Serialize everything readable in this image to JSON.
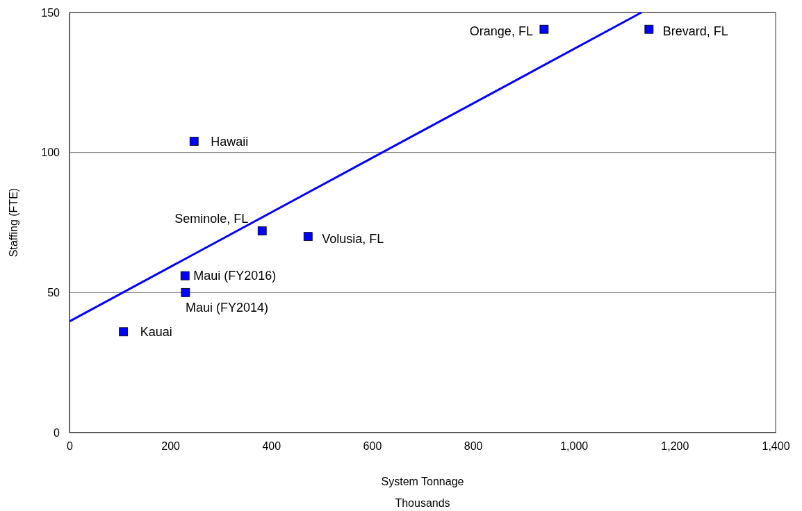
{
  "chart_data": {
    "type": "scatter",
    "xlabel": "System Tonnage",
    "ylabel": "Staffing (FTE)",
    "annotations": [
      "Thousands",
      {
        "text": "Kauai",
        "x": 107,
        "y": 36
      },
      {
        "text": "Maui (FY2014)",
        "x": 230,
        "y": 50
      },
      {
        "text": "Maui (FY2016)",
        "x": 229,
        "y": 56
      },
      {
        "text": "Hawaii",
        "x": 247,
        "y": 104
      },
      {
        "text": "Seminole, FL",
        "x": 382,
        "y": 72
      },
      {
        "text": "Volusia, FL",
        "x": 473,
        "y": 70
      },
      {
        "text": "Orange, FL",
        "x": 941,
        "y": 144
      },
      {
        "text": "Brevard, FL",
        "x": 1149,
        "y": 144
      }
    ],
    "series": [
      {
        "type": "line",
        "color": "#0000ff",
        "x": [
          0,
          1134
        ],
        "values": [
          39.7,
          150
        ],
        "marker": "none"
      },
      {
        "color": "#0000ff",
        "marker": "square",
        "x": [
          107,
          230,
          229,
          247,
          382,
          473,
          941,
          1149
        ],
        "values": [
          36,
          50,
          56,
          104,
          72,
          70,
          144,
          144
        ]
      }
    ],
    "xlim": [
      0,
      1400
    ],
    "ylim": [
      0,
      150
    ],
    "xticks": [
      0,
      200,
      400,
      600,
      800,
      {
        "value": 1000,
        "label": "1,000"
      },
      {
        "value": 1200,
        "label": "1,200"
      },
      {
        "value": 1400,
        "label": "1,400"
      }
    ],
    "yticks": [
      0,
      50,
      100,
      150
    ],
    "grid": "y"
  }
}
